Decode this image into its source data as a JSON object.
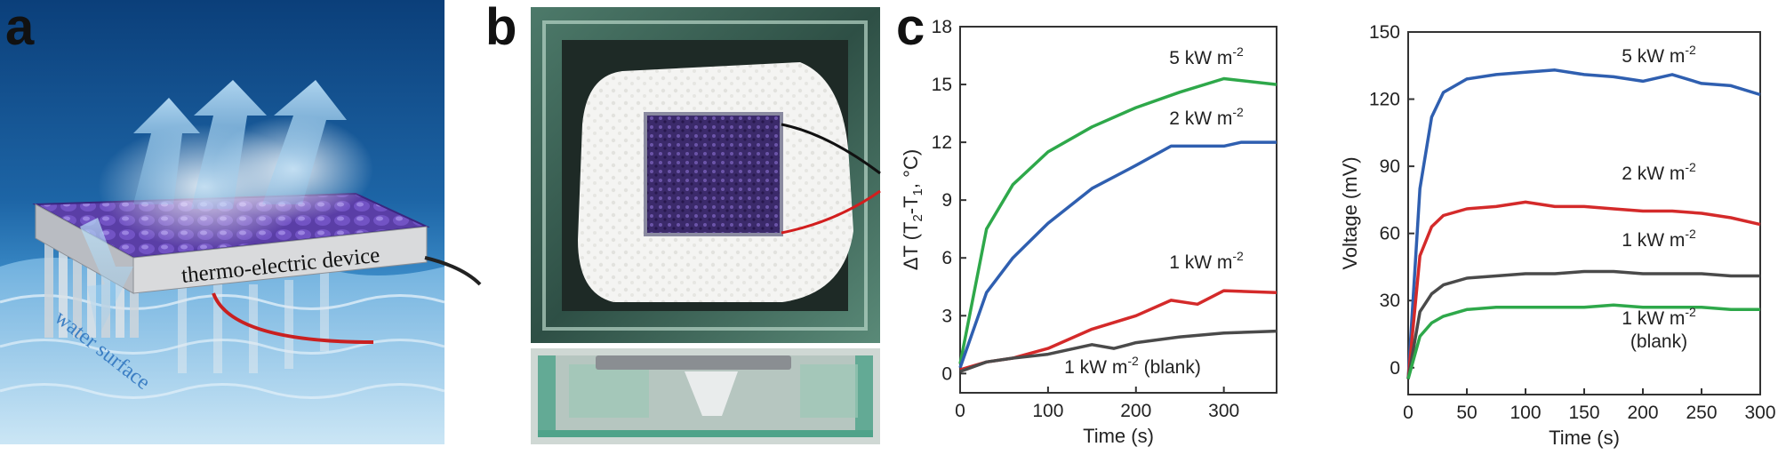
{
  "panels": {
    "a": {
      "letter": "a",
      "device_label": "thermo-electric device",
      "water_label": "water surface"
    },
    "b": {
      "letter": "b"
    },
    "c": {
      "letter": "c"
    }
  },
  "colors": {
    "green": "#2ea84a",
    "blue": "#2f5fb0",
    "red": "#d42a2a",
    "gray": "#4a4a4a",
    "purple": "#5b3d9e",
    "water": "#2a7ab8"
  },
  "chart_data": [
    {
      "type": "line",
      "title": "",
      "xlabel": "Time (s)",
      "ylabel": "ΔT (T2-T1, °C)",
      "ylabel_parts": {
        "delta": "ΔT (T",
        "s2": "2",
        "dash": "-T",
        "s1": "1",
        "unit": ", °C)"
      },
      "xlim": [
        0,
        360
      ],
      "ylim": [
        -1,
        18
      ],
      "xticks": [
        0,
        100,
        200,
        300
      ],
      "yticks": [
        0,
        3,
        6,
        9,
        12,
        15,
        18
      ],
      "series": [
        {
          "name": "5 kW m-2",
          "label_main": "5 kW m",
          "label_sup": "-2",
          "color": "green",
          "x": [
            0,
            30,
            60,
            100,
            150,
            200,
            250,
            300,
            360
          ],
          "y": [
            0.5,
            7.5,
            9.8,
            11.5,
            12.8,
            13.8,
            14.6,
            15.3,
            15.0
          ]
        },
        {
          "name": "2 kW m-2",
          "label_main": "2 kW m",
          "label_sup": "-2",
          "color": "blue",
          "x": [
            0,
            30,
            60,
            100,
            150,
            200,
            240,
            300,
            320,
            360
          ],
          "y": [
            0.3,
            4.2,
            6.0,
            7.8,
            9.6,
            10.8,
            11.8,
            11.8,
            12.0,
            12.0
          ]
        },
        {
          "name": "1 kW m-2",
          "label_main": "1 kW m",
          "label_sup": "-2",
          "color": "red",
          "x": [
            0,
            30,
            60,
            100,
            150,
            200,
            240,
            270,
            300,
            360
          ],
          "y": [
            0.2,
            0.6,
            0.8,
            1.3,
            2.3,
            3.0,
            3.8,
            3.6,
            4.3,
            4.2
          ]
        },
        {
          "name": "1 kW m-2 (blank)",
          "label_main": "1 kW m",
          "label_sup": "-2",
          "label_tail": " (blank)",
          "color": "gray",
          "x": [
            0,
            30,
            60,
            100,
            150,
            175,
            200,
            250,
            300,
            360
          ],
          "y": [
            0.1,
            0.6,
            0.8,
            1.0,
            1.5,
            1.3,
            1.6,
            1.9,
            2.1,
            2.2
          ]
        }
      ]
    },
    {
      "type": "line",
      "title": "",
      "xlabel": "Time (s)",
      "ylabel": "Voltage (mV)",
      "xlim": [
        0,
        300
      ],
      "ylim": [
        -12,
        150
      ],
      "xticks": [
        0,
        50,
        100,
        150,
        200,
        250,
        300
      ],
      "yticks": [
        0,
        30,
        60,
        90,
        120,
        150
      ],
      "series": [
        {
          "name": "5 kW m-2",
          "label_main": "5 kW m",
          "label_sup": "-2",
          "color": "blue",
          "x": [
            0,
            10,
            20,
            30,
            50,
            75,
            100,
            125,
            150,
            175,
            200,
            225,
            250,
            275,
            300
          ],
          "y": [
            -5,
            80,
            112,
            123,
            129,
            131,
            132,
            133,
            131,
            130,
            128,
            131,
            127,
            126,
            122
          ]
        },
        {
          "name": "2 kW m-2",
          "label_main": "2 kW m",
          "label_sup": "-2",
          "color": "red",
          "x": [
            0,
            10,
            20,
            30,
            50,
            75,
            100,
            125,
            150,
            175,
            200,
            225,
            250,
            275,
            300
          ],
          "y": [
            -5,
            50,
            63,
            68,
            71,
            72,
            74,
            72,
            72,
            71,
            70,
            70,
            69,
            67,
            64
          ]
        },
        {
          "name": "1 kW m-2",
          "label_main": "1 kW m",
          "label_sup": "-2",
          "color": "gray",
          "x": [
            0,
            10,
            20,
            30,
            50,
            75,
            100,
            125,
            150,
            175,
            200,
            225,
            250,
            275,
            300
          ],
          "y": [
            -5,
            25,
            33,
            37,
            40,
            41,
            42,
            42,
            43,
            43,
            42,
            42,
            42,
            41,
            41
          ]
        },
        {
          "name": "1 kW m-2 (blank)",
          "label_main": "1 kW m",
          "label_sup": "-2",
          "label_tail": "(blank)",
          "color": "green",
          "x": [
            0,
            10,
            20,
            30,
            50,
            75,
            100,
            125,
            150,
            175,
            200,
            225,
            250,
            275,
            300
          ],
          "y": [
            -5,
            14,
            20,
            23,
            26,
            27,
            27,
            27,
            27,
            28,
            27,
            27,
            27,
            26,
            26
          ]
        }
      ]
    }
  ]
}
